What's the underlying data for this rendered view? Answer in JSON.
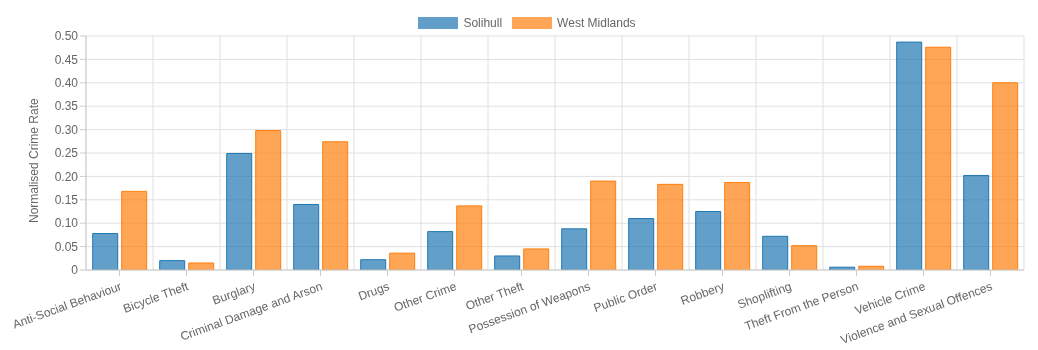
{
  "chart_data": {
    "type": "bar",
    "ylabel": "Normalised Crime Rate",
    "categories": [
      "Anti-Social Behaviour",
      "Bicycle Theft",
      "Burglary",
      "Criminal Damage and Arson",
      "Drugs",
      "Other Crime",
      "Other Theft",
      "Possession of Weapons",
      "Public Order",
      "Robbery",
      "Shoplifting",
      "Theft From the Person",
      "Vehicle Crime",
      "Violence and Sexual Offences"
    ],
    "series": [
      {
        "name": "Solihull",
        "color": "#1f77b4",
        "values": [
          0.078,
          0.02,
          0.249,
          0.14,
          0.022,
          0.082,
          0.03,
          0.088,
          0.11,
          0.125,
          0.072,
          0.006,
          0.487,
          0.202
        ]
      },
      {
        "name": "West Midlands",
        "color": "#ff7f0e",
        "values": [
          0.168,
          0.015,
          0.298,
          0.274,
          0.036,
          0.137,
          0.045,
          0.19,
          0.183,
          0.187,
          0.052,
          0.008,
          0.476,
          0.4
        ]
      }
    ],
    "ylim": [
      0,
      0.5
    ],
    "yticks": [
      0,
      {
        "value": 0.05,
        "label": "0.05"
      },
      {
        "value": 0.1,
        "label": "0.10"
      },
      {
        "value": 0.15,
        "label": "0.15"
      },
      {
        "value": 0.2,
        "label": "0.20"
      },
      {
        "value": 0.25,
        "label": "0.25"
      },
      {
        "value": 0.3,
        "label": "0.30"
      },
      {
        "value": 0.35,
        "label": "0.35"
      },
      {
        "value": 0.4,
        "label": "0.40"
      },
      {
        "value": 0.45,
        "label": "0.45"
      },
      {
        "value": 0.5,
        "label": "0.50"
      }
    ],
    "grid": true,
    "legend": "top"
  }
}
